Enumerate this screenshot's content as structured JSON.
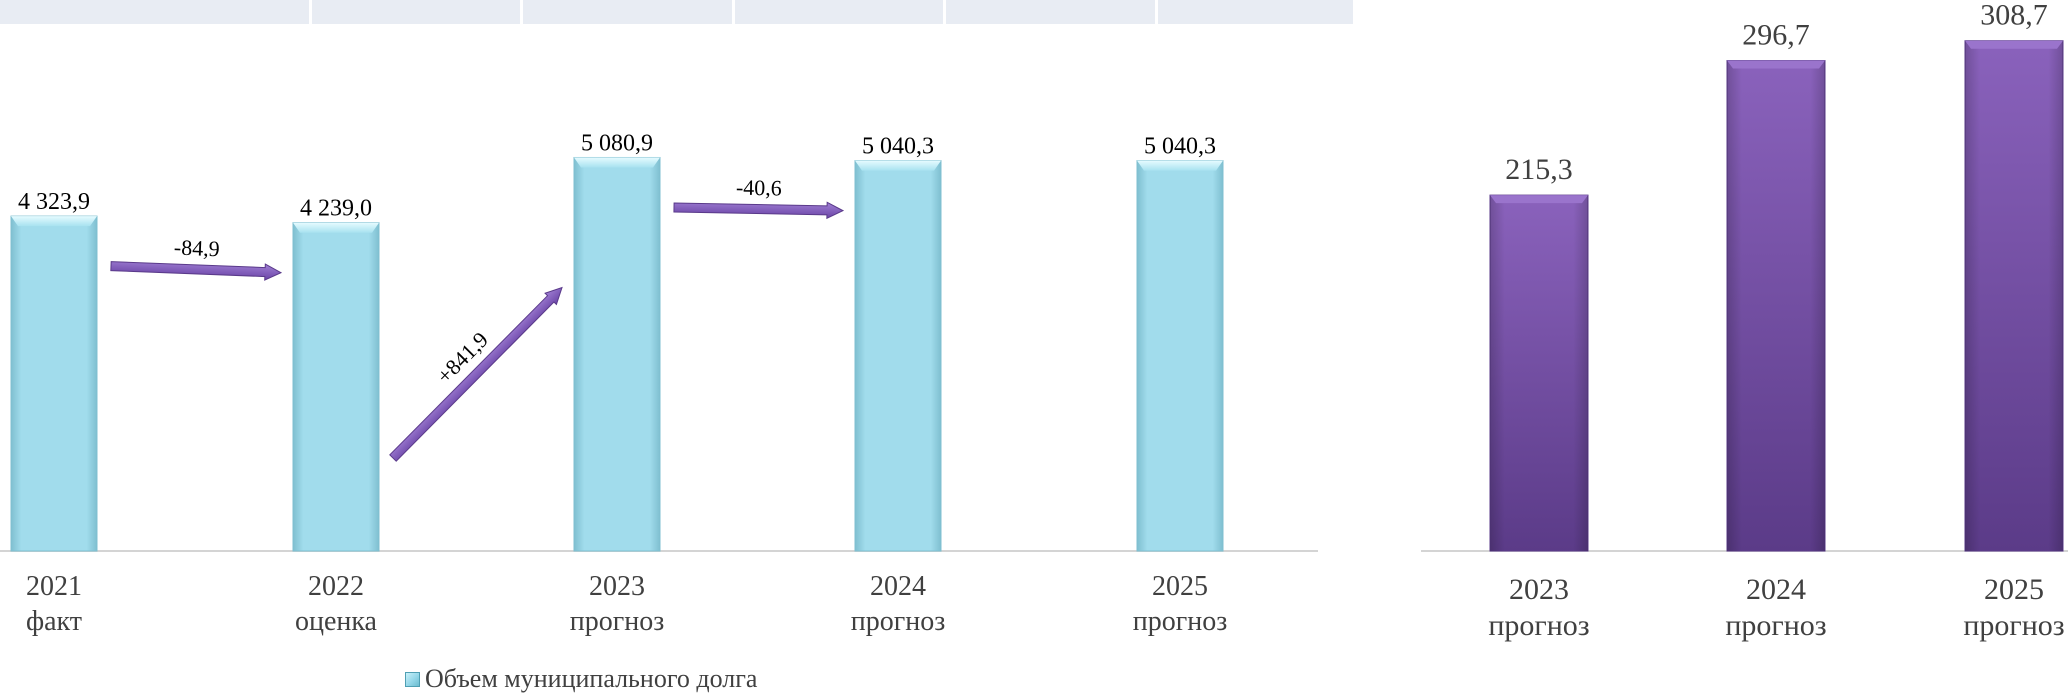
{
  "colors": {
    "debt_bar": "#a1dcec",
    "debt_bar_dark": "#7fbfd0",
    "service_bar": "#7a52ac",
    "service_bar_dark": "#5a3a8a",
    "arrow": "#8660c0",
    "axis": "#d4d4d4",
    "label_text": "#000000",
    "tick_text": "#404040"
  },
  "chart_data": [
    {
      "type": "bar",
      "categories": [
        [
          "2021",
          "факт"
        ],
        [
          "2022",
          "оценка"
        ],
        [
          "2023",
          "прогноз"
        ],
        [
          "2024",
          "прогноз"
        ],
        [
          "2025",
          "прогноз"
        ]
      ],
      "series": [
        {
          "name": "Объем муниципального долга",
          "values": [
            4323.9,
            4239.0,
            5080.9,
            5040.3,
            5040.3
          ],
          "labels": [
            "4 323,9",
            "4 239,0",
            "5 080,9",
            "5 040,3",
            "5 040,3"
          ]
        }
      ],
      "changes": [
        {
          "from": 0,
          "to": 1,
          "label": "-84,9"
        },
        {
          "from": 1,
          "to": 2,
          "label": "+841,9"
        },
        {
          "from": 2,
          "to": 3,
          "label": "-40,6"
        }
      ],
      "legend": "bottom",
      "grid": false
    },
    {
      "type": "bar",
      "categories": [
        [
          "2023",
          "прогноз"
        ],
        [
          "2024",
          "прогноз"
        ],
        [
          "2025",
          "прогноз"
        ]
      ],
      "series": [
        {
          "values": [
            215.3,
            296.7,
            308.7
          ],
          "labels": [
            "215,3",
            "296,7",
            "308,7"
          ]
        }
      ],
      "grid": false
    }
  ]
}
